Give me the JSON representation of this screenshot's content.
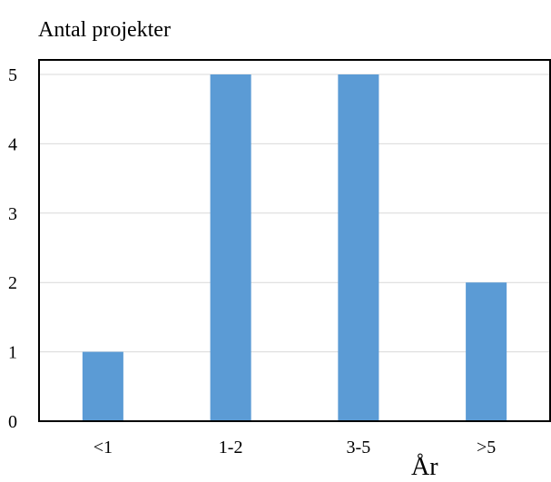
{
  "chart_data": {
    "type": "bar",
    "title": "",
    "ylabel": "Antal projekter",
    "xlabel": "År",
    "categories": [
      "<1",
      "1-2",
      "3-5",
      ">5"
    ],
    "values": [
      1,
      5,
      5,
      2
    ],
    "ylim": [
      0,
      5
    ],
    "yticks": [
      "0",
      "1",
      "2",
      "3",
      "4",
      "5"
    ],
    "grid": true,
    "legend": "none",
    "bar_color": "#5b9bd5",
    "gridline_color": "#d9d9d9",
    "axis_color": "#000000"
  }
}
